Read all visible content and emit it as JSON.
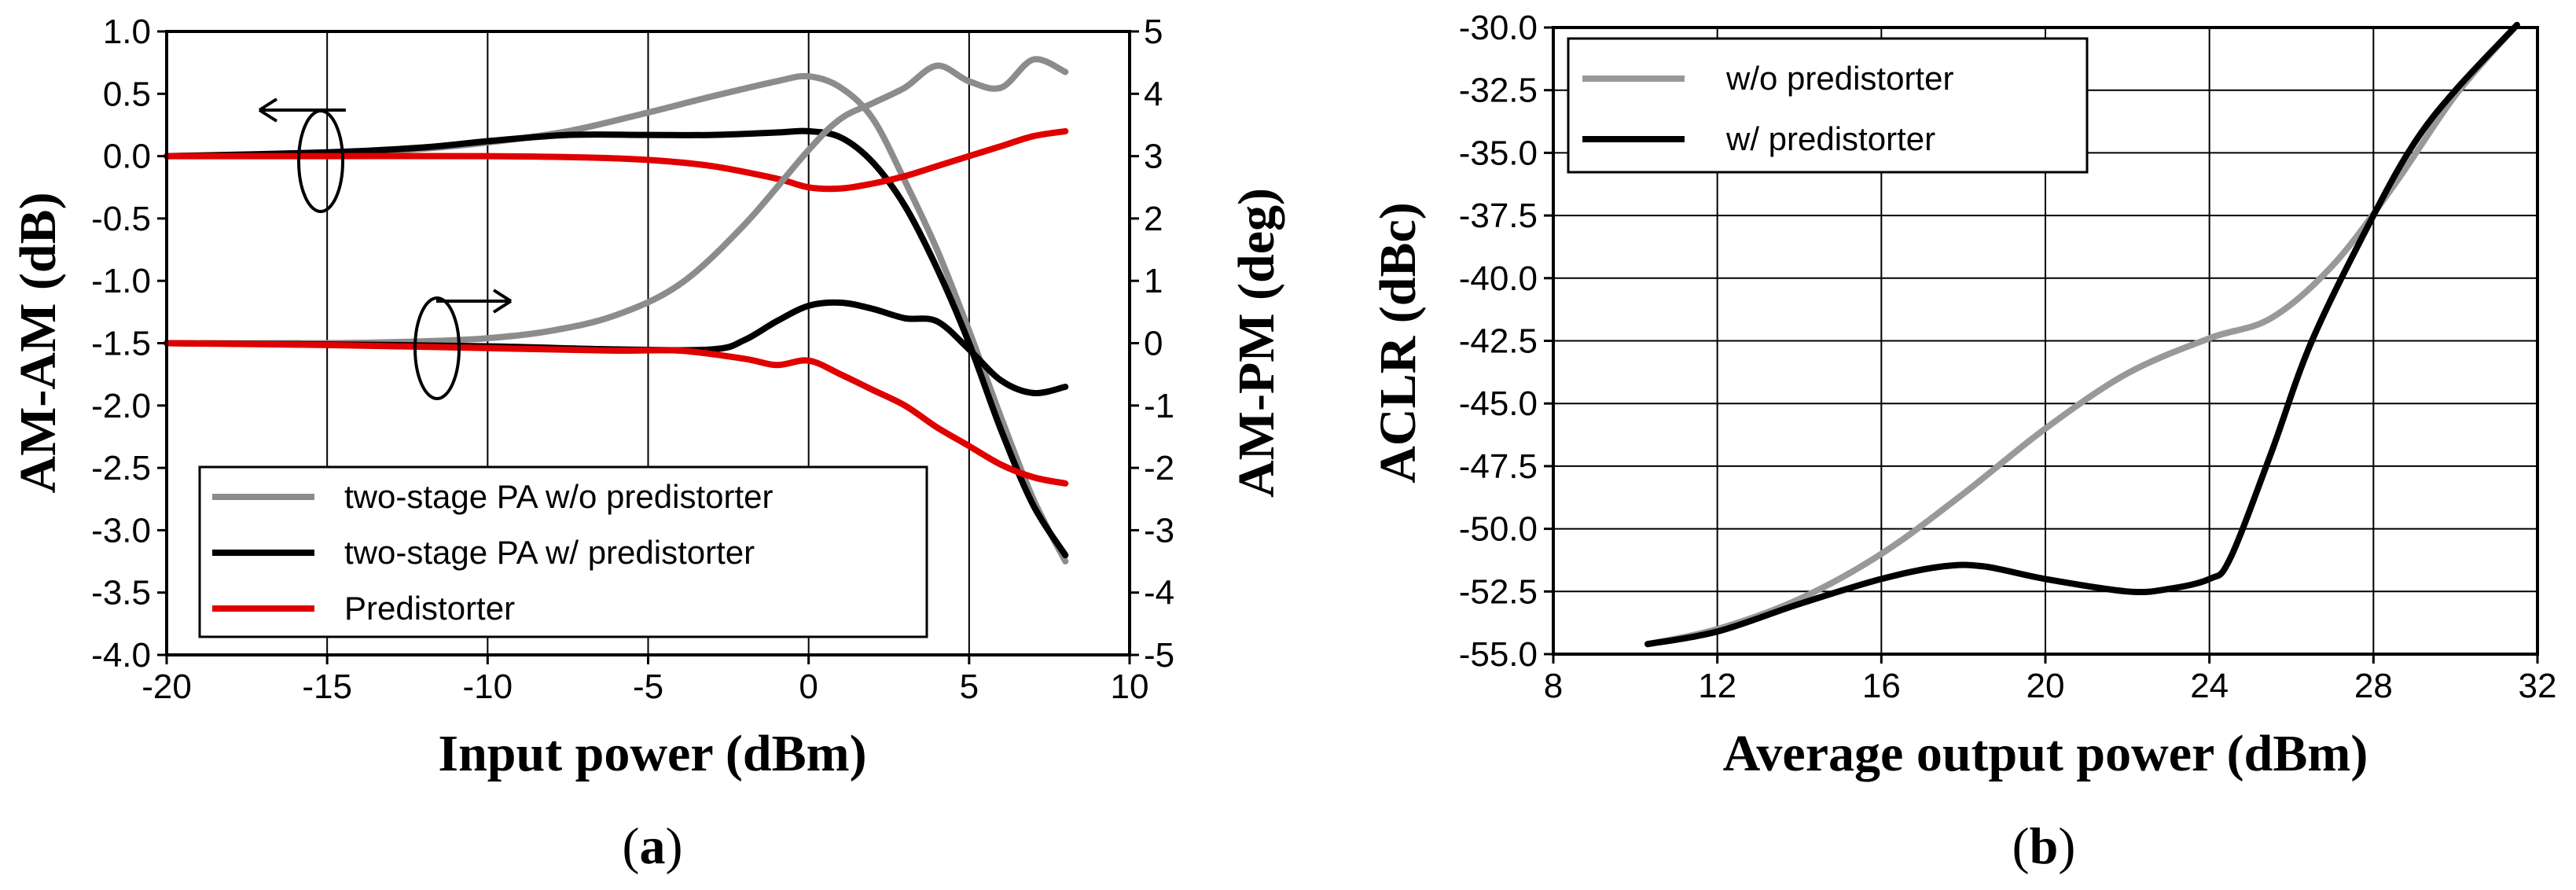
{
  "chart_data": [
    {
      "type": "line",
      "caption_open": "(",
      "caption": "a",
      "caption_close": ")",
      "xlabel": "Input power (dBm)",
      "ylabel_left": "AM-AM (dB)",
      "ylabel_right": "AM-PM (deg)",
      "xlim": [
        -20,
        10
      ],
      "ylim_left": [
        -4.0,
        1.0
      ],
      "ylim_right": [
        -5,
        5
      ],
      "x_ticks": [
        "-20",
        "-15",
        "-10",
        "-5",
        "0",
        "5",
        "10"
      ],
      "y_left_ticks": [
        "1.0",
        "0.5",
        "0.0",
        "-0.5",
        "-1.0",
        "-1.5",
        "-2.0",
        "-2.5",
        "-3.0",
        "-3.5",
        "-4.0"
      ],
      "y_right_ticks": [
        "5",
        "4",
        "3",
        "2",
        "1",
        "0",
        "-1",
        "-2",
        "-3",
        "-4",
        "-5"
      ],
      "grid": true,
      "legend_position": "bottom-left",
      "legend": [
        "two-stage PA w/o predistorter",
        "two-stage PA w/ predistorter",
        "Predistorter"
      ],
      "series": [
        {
          "name": "two-stage PA w/o predistorter (AM-AM)",
          "axis": "left",
          "color": "#8c8c8c",
          "x": [
            -20,
            -15,
            -12,
            -10,
            -7.5,
            -5,
            -3,
            -1,
            0,
            1,
            2,
            3,
            4,
            5,
            6,
            7,
            8
          ],
          "y": [
            0.0,
            0.02,
            0.06,
            0.11,
            0.2,
            0.35,
            0.48,
            0.6,
            0.64,
            0.55,
            0.3,
            -0.2,
            -0.75,
            -1.4,
            -2.1,
            -2.75,
            -3.25
          ]
        },
        {
          "name": "two-stage PA w/ predistorter (AM-AM)",
          "axis": "left",
          "color": "#000000",
          "x": [
            -20,
            -15,
            -12,
            -10,
            -7.5,
            -5,
            -3,
            -1,
            0,
            1,
            2,
            3,
            4,
            5,
            6,
            7,
            8
          ],
          "y": [
            0.0,
            0.03,
            0.07,
            0.12,
            0.17,
            0.17,
            0.17,
            0.19,
            0.2,
            0.15,
            -0.05,
            -0.4,
            -0.9,
            -1.5,
            -2.2,
            -2.8,
            -3.2
          ]
        },
        {
          "name": "Predistorter (AM-AM)",
          "axis": "left",
          "color": "#e00000",
          "x": [
            -20,
            -15,
            -10,
            -7,
            -5,
            -3,
            -1,
            0,
            1,
            2,
            3,
            4,
            5,
            6,
            7,
            8
          ],
          "y": [
            0.0,
            0.0,
            0.0,
            -0.01,
            -0.03,
            -0.08,
            -0.18,
            -0.25,
            -0.26,
            -0.22,
            -0.16,
            -0.08,
            0.0,
            0.08,
            0.16,
            0.2
          ]
        },
        {
          "name": "two-stage PA w/o predistorter (AM-PM)",
          "axis": "right",
          "color": "#8c8c8c",
          "x": [
            -20,
            -15,
            -12,
            -10,
            -8,
            -6,
            -4,
            -2,
            0,
            1,
            2,
            3,
            4,
            5,
            6,
            7,
            8
          ],
          "y": [
            0.0,
            0.0,
            0.03,
            0.08,
            0.2,
            0.45,
            0.95,
            1.9,
            3.1,
            3.6,
            3.85,
            4.1,
            4.45,
            4.2,
            4.1,
            4.55,
            4.35
          ]
        },
        {
          "name": "two-stage PA w/ predistorter (AM-PM)",
          "axis": "right",
          "color": "#000000",
          "x": [
            -20,
            -15,
            -10,
            -6,
            -3,
            -2,
            -1,
            0,
            1,
            2,
            3,
            4,
            5,
            6,
            7,
            8
          ],
          "y": [
            0.0,
            -0.02,
            -0.05,
            -0.1,
            -0.1,
            0.05,
            0.35,
            0.6,
            0.65,
            0.55,
            0.4,
            0.35,
            -0.1,
            -0.6,
            -0.8,
            -0.7
          ]
        },
        {
          "name": "Predistorter (AM-PM)",
          "axis": "right",
          "color": "#e00000",
          "x": [
            -20,
            -15,
            -10,
            -6,
            -4,
            -2,
            -1,
            0,
            1,
            2,
            3,
            4,
            5,
            6,
            7,
            8
          ],
          "y": [
            0.0,
            -0.03,
            -0.08,
            -0.12,
            -0.12,
            -0.25,
            -0.35,
            -0.28,
            -0.5,
            -0.75,
            -1.0,
            -1.35,
            -1.65,
            -1.95,
            -2.15,
            -2.25
          ]
        }
      ]
    },
    {
      "type": "line",
      "caption_open": "(",
      "caption": "b",
      "caption_close": ")",
      "xlabel": "Average output power (dBm)",
      "ylabel": "ACLR (dBc)",
      "xlim": [
        8,
        32
      ],
      "ylim": [
        -55.0,
        -30.0
      ],
      "x_ticks": [
        "8",
        "12",
        "16",
        "20",
        "24",
        "28",
        "32"
      ],
      "y_ticks": [
        "-30.0",
        "-32.5",
        "-35.0",
        "-37.5",
        "-40.0",
        "-42.5",
        "-45.0",
        "-47.5",
        "-50.0",
        "-52.5",
        "-55.0"
      ],
      "grid": true,
      "legend_position": "top-left",
      "legend": [
        "w/o predistorter",
        "w/ predistorter"
      ],
      "series": [
        {
          "name": "w/o predistorter",
          "color": "#999999",
          "x": [
            10.3,
            12,
            14,
            16,
            18,
            20,
            22,
            24,
            25.5,
            27,
            28.5,
            30,
            31.5
          ],
          "y": [
            -54.6,
            -54.0,
            -52.8,
            -51.0,
            -48.6,
            -46.0,
            -43.8,
            -42.4,
            -41.6,
            -39.5,
            -36.3,
            -32.7,
            -29.9
          ]
        },
        {
          "name": "w/ predistorter",
          "color": "#000000",
          "x": [
            10.3,
            12,
            14,
            16,
            17.5,
            18.5,
            20,
            22,
            23,
            24,
            24.5,
            25.5,
            26.5,
            28,
            29,
            30,
            31.5
          ],
          "y": [
            -54.6,
            -54.1,
            -53.0,
            -52.0,
            -51.5,
            -51.5,
            -52.0,
            -52.5,
            -52.4,
            -52.0,
            -51.2,
            -47.0,
            -42.5,
            -37.5,
            -34.6,
            -32.5,
            -29.9
          ]
        }
      ]
    }
  ]
}
